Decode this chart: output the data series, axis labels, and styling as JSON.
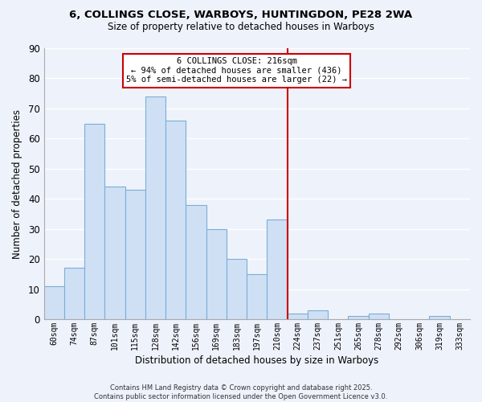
{
  "title": "6, COLLINGS CLOSE, WARBOYS, HUNTINGDON, PE28 2WA",
  "subtitle": "Size of property relative to detached houses in Warboys",
  "xlabel": "Distribution of detached houses by size in Warboys",
  "ylabel": "Number of detached properties",
  "bar_color": "#cfe0f5",
  "bar_edge_color": "#7aaed6",
  "background_color": "#eef2fb",
  "grid_color": "#ffffff",
  "categories": [
    "60sqm",
    "74sqm",
    "87sqm",
    "101sqm",
    "115sqm",
    "128sqm",
    "142sqm",
    "156sqm",
    "169sqm",
    "183sqm",
    "197sqm",
    "210sqm",
    "224sqm",
    "237sqm",
    "251sqm",
    "265sqm",
    "278sqm",
    "292sqm",
    "306sqm",
    "319sqm",
    "333sqm"
  ],
  "values": [
    11,
    17,
    65,
    44,
    43,
    74,
    66,
    38,
    30,
    20,
    15,
    33,
    2,
    3,
    0,
    1,
    2,
    0,
    0,
    1,
    0
  ],
  "ylim": [
    0,
    90
  ],
  "yticks": [
    0,
    10,
    20,
    30,
    40,
    50,
    60,
    70,
    80,
    90
  ],
  "vline_index": 11.5,
  "vline_color": "#cc0000",
  "annotation_text": "6 COLLINGS CLOSE: 216sqm\n← 94% of detached houses are smaller (436)\n5% of semi-detached houses are larger (22) →",
  "annotation_box_color": "#ffffff",
  "annotation_box_edge": "#cc0000",
  "footnote": "Contains HM Land Registry data © Crown copyright and database right 2025.\nContains public sector information licensed under the Open Government Licence v3.0."
}
